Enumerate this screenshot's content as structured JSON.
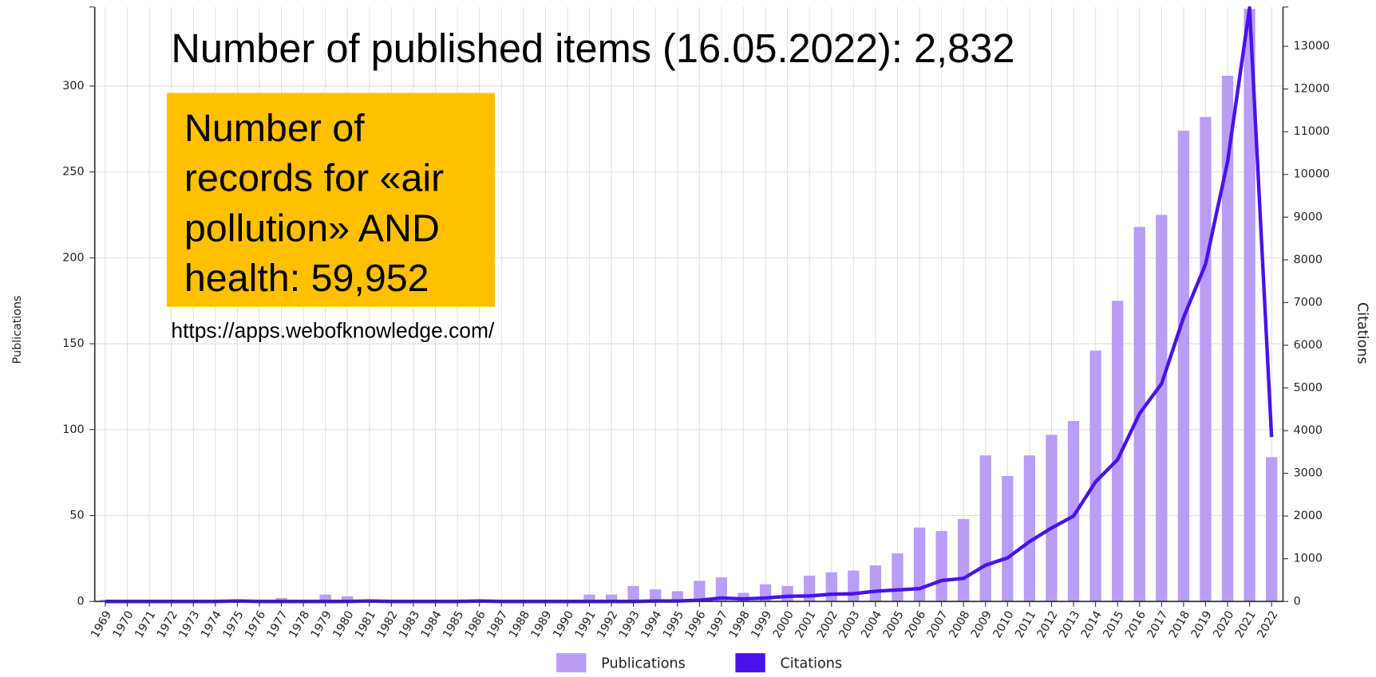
{
  "chart_data": {
    "type": "bar+line",
    "title": "Number of published items (16.05.2022): 2,832",
    "annotations": [
      "Number of records for «air pollution» AND health: 59,952",
      "https://apps.webofknowledge.com/"
    ],
    "y_label": "Publications",
    "y2_label": "Citations",
    "categories": [
      "1969",
      "1970",
      "1971",
      "1972",
      "1973",
      "1974",
      "1975",
      "1976",
      "1977",
      "1978",
      "1979",
      "1980",
      "1981",
      "1982",
      "1983",
      "1984",
      "1985",
      "1986",
      "1987",
      "1988",
      "1989",
      "1990",
      "1991",
      "1992",
      "1993",
      "1994",
      "1995",
      "1996",
      "1997",
      "1998",
      "1999",
      "2000",
      "2001",
      "2002",
      "2003",
      "2004",
      "2005",
      "2006",
      "2007",
      "2008",
      "2009",
      "2010",
      "2011",
      "2012",
      "2013",
      "2014",
      "2015",
      "2016",
      "2017",
      "2018",
      "2019",
      "2020",
      "2021",
      "2022"
    ],
    "series": [
      {
        "name": "Publications",
        "color": "#b99df7",
        "type": "bar",
        "values": [
          1,
          0,
          0,
          0,
          0,
          0,
          1,
          0,
          2,
          0,
          4,
          3,
          1,
          0,
          0,
          0,
          1,
          1,
          1,
          0,
          0,
          1,
          4,
          4,
          9,
          7,
          6,
          12,
          14,
          5,
          10,
          9,
          15,
          17,
          18,
          21,
          28,
          43,
          41,
          48,
          85,
          73,
          85,
          97,
          105,
          146,
          175,
          218,
          225,
          274,
          282,
          306,
          345,
          84
        ]
      },
      {
        "name": "Citations",
        "color": "#4a12e8",
        "type": "line",
        "axis": "y2",
        "values": [
          0,
          0,
          0,
          0,
          0,
          0,
          10,
          0,
          0,
          0,
          0,
          0,
          10,
          0,
          0,
          0,
          0,
          10,
          0,
          0,
          0,
          0,
          0,
          0,
          0,
          10,
          10,
          30,
          80,
          60,
          80,
          120,
          130,
          170,
          180,
          240,
          270,
          300,
          490,
          540,
          850,
          1020,
          1400,
          1720,
          2000,
          2800,
          3320,
          4400,
          5100,
          6650,
          7900,
          10300,
          13900,
          3850
        ]
      }
    ],
    "ylim": [
      0,
      346
    ],
    "yticks": [
      0,
      50,
      100,
      150,
      200,
      250,
      300
    ],
    "y2lim": [
      0,
      13920
    ],
    "y2ticks": [
      0,
      1000,
      2000,
      3000,
      4000,
      5000,
      6000,
      7000,
      8000,
      9000,
      10000,
      11000,
      12000,
      13000
    ],
    "grid": true,
    "legend": "bottom"
  }
}
